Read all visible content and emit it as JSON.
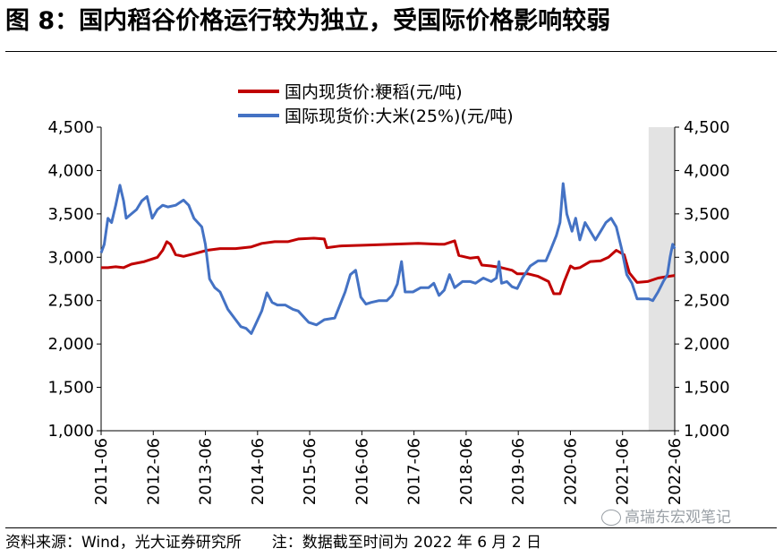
{
  "header": {
    "title": "图 8：国内稻谷价格运行较为独立，受国际价格影响较弱"
  },
  "footer": {
    "source": "资料来源：Wind，光大证券研究所",
    "note": "注：数据截至时间为 2022 年 6 月 2 日"
  },
  "watermark": {
    "text": "高瑞东宏观笔记"
  },
  "chart_data": {
    "type": "line",
    "title": "",
    "xlabel": "",
    "ylabel": "",
    "ylim": [
      1000,
      4500
    ],
    "yticks": [
      "1,000",
      "1,500",
      "2,000",
      "2,500",
      "3,000",
      "3,500",
      "4,000",
      "4,500"
    ],
    "y2ticks": [
      "1,000",
      "1,500",
      "2,000",
      "2,500",
      "3,000",
      "3,500",
      "4,000",
      "4,500"
    ],
    "xticks": [
      "2011-06",
      "2012-06",
      "2013-06",
      "2014-06",
      "2015-06",
      "2016-06",
      "2017-06",
      "2018-06",
      "2019-06",
      "2020-06",
      "2021-06",
      "2022-06"
    ],
    "x_range": [
      2011.42,
      2022.42
    ],
    "shaded_region": [
      2021.92,
      2022.42
    ],
    "legend_position": "top-center",
    "series": [
      {
        "name": "国内现货价:粳稻(元/吨)",
        "color": "#c00000",
        "points": [
          [
            2011.42,
            2880
          ],
          [
            2011.55,
            2880
          ],
          [
            2011.7,
            2890
          ],
          [
            2011.85,
            2880
          ],
          [
            2012.0,
            2920
          ],
          [
            2012.25,
            2950
          ],
          [
            2012.5,
            3000
          ],
          [
            2012.6,
            3080
          ],
          [
            2012.68,
            3180
          ],
          [
            2012.75,
            3150
          ],
          [
            2012.85,
            3030
          ],
          [
            2013.0,
            3010
          ],
          [
            2013.2,
            3040
          ],
          [
            2013.45,
            3080
          ],
          [
            2013.7,
            3100
          ],
          [
            2014.0,
            3100
          ],
          [
            2014.3,
            3120
          ],
          [
            2014.5,
            3160
          ],
          [
            2014.75,
            3180
          ],
          [
            2015.0,
            3180
          ],
          [
            2015.2,
            3210
          ],
          [
            2015.5,
            3220
          ],
          [
            2015.7,
            3210
          ],
          [
            2015.75,
            3110
          ],
          [
            2016.0,
            3130
          ],
          [
            2016.5,
            3140
          ],
          [
            2017.0,
            3150
          ],
          [
            2017.5,
            3160
          ],
          [
            2017.9,
            3150
          ],
          [
            2018.0,
            3150
          ],
          [
            2018.2,
            3190
          ],
          [
            2018.28,
            3020
          ],
          [
            2018.5,
            2990
          ],
          [
            2018.65,
            3000
          ],
          [
            2018.72,
            2910
          ],
          [
            2018.9,
            2900
          ],
          [
            2019.1,
            2880
          ],
          [
            2019.3,
            2850
          ],
          [
            2019.4,
            2810
          ],
          [
            2019.6,
            2810
          ],
          [
            2019.8,
            2780
          ],
          [
            2020.0,
            2720
          ],
          [
            2020.1,
            2580
          ],
          [
            2020.22,
            2580
          ],
          [
            2020.3,
            2720
          ],
          [
            2020.42,
            2900
          ],
          [
            2020.5,
            2870
          ],
          [
            2020.6,
            2880
          ],
          [
            2020.8,
            2950
          ],
          [
            2021.0,
            2960
          ],
          [
            2021.15,
            3000
          ],
          [
            2021.3,
            3080
          ],
          [
            2021.45,
            3030
          ],
          [
            2021.55,
            2820
          ],
          [
            2021.7,
            2710
          ],
          [
            2021.9,
            2720
          ],
          [
            2022.1,
            2760
          ],
          [
            2022.3,
            2780
          ],
          [
            2022.42,
            2790
          ]
        ]
      },
      {
        "name": "国际现货价:大米(25%)(元/吨)",
        "color": "#4472c4",
        "points": [
          [
            2011.42,
            3050
          ],
          [
            2011.48,
            3150
          ],
          [
            2011.55,
            3450
          ],
          [
            2011.62,
            3400
          ],
          [
            2011.7,
            3600
          ],
          [
            2011.78,
            3830
          ],
          [
            2011.85,
            3650
          ],
          [
            2011.9,
            3450
          ],
          [
            2012.0,
            3500
          ],
          [
            2012.1,
            3550
          ],
          [
            2012.2,
            3650
          ],
          [
            2012.3,
            3700
          ],
          [
            2012.4,
            3450
          ],
          [
            2012.5,
            3550
          ],
          [
            2012.6,
            3600
          ],
          [
            2012.7,
            3580
          ],
          [
            2012.85,
            3600
          ],
          [
            2013.0,
            3660
          ],
          [
            2013.1,
            3600
          ],
          [
            2013.2,
            3450
          ],
          [
            2013.35,
            3350
          ],
          [
            2013.42,
            3150
          ],
          [
            2013.5,
            2750
          ],
          [
            2013.6,
            2650
          ],
          [
            2013.7,
            2600
          ],
          [
            2013.85,
            2400
          ],
          [
            2014.0,
            2280
          ],
          [
            2014.1,
            2200
          ],
          [
            2014.2,
            2180
          ],
          [
            2014.3,
            2120
          ],
          [
            2014.4,
            2250
          ],
          [
            2014.5,
            2380
          ],
          [
            2014.6,
            2590
          ],
          [
            2014.7,
            2480
          ],
          [
            2014.8,
            2450
          ],
          [
            2014.95,
            2450
          ],
          [
            2015.1,
            2400
          ],
          [
            2015.2,
            2380
          ],
          [
            2015.4,
            2250
          ],
          [
            2015.55,
            2220
          ],
          [
            2015.7,
            2280
          ],
          [
            2015.9,
            2300
          ],
          [
            2016.0,
            2450
          ],
          [
            2016.1,
            2600
          ],
          [
            2016.2,
            2800
          ],
          [
            2016.3,
            2850
          ],
          [
            2016.4,
            2540
          ],
          [
            2016.5,
            2460
          ],
          [
            2016.6,
            2480
          ],
          [
            2016.75,
            2500
          ],
          [
            2016.9,
            2500
          ],
          [
            2017.0,
            2560
          ],
          [
            2017.1,
            2690
          ],
          [
            2017.18,
            2950
          ],
          [
            2017.25,
            2600
          ],
          [
            2017.4,
            2600
          ],
          [
            2017.55,
            2650
          ],
          [
            2017.7,
            2650
          ],
          [
            2017.8,
            2700
          ],
          [
            2017.9,
            2560
          ],
          [
            2018.0,
            2620
          ],
          [
            2018.1,
            2800
          ],
          [
            2018.2,
            2650
          ],
          [
            2018.35,
            2720
          ],
          [
            2018.5,
            2720
          ],
          [
            2018.6,
            2700
          ],
          [
            2018.75,
            2760
          ],
          [
            2018.9,
            2720
          ],
          [
            2019.0,
            2760
          ],
          [
            2019.05,
            2950
          ],
          [
            2019.1,
            2700
          ],
          [
            2019.2,
            2720
          ],
          [
            2019.3,
            2660
          ],
          [
            2019.4,
            2640
          ],
          [
            2019.5,
            2760
          ],
          [
            2019.65,
            2900
          ],
          [
            2019.8,
            2960
          ],
          [
            2019.95,
            2960
          ],
          [
            2020.05,
            3100
          ],
          [
            2020.15,
            3250
          ],
          [
            2020.22,
            3400
          ],
          [
            2020.28,
            3850
          ],
          [
            2020.35,
            3500
          ],
          [
            2020.45,
            3300
          ],
          [
            2020.52,
            3450
          ],
          [
            2020.6,
            3200
          ],
          [
            2020.7,
            3400
          ],
          [
            2020.8,
            3300
          ],
          [
            2020.9,
            3200
          ],
          [
            2021.0,
            3300
          ],
          [
            2021.1,
            3400
          ],
          [
            2021.2,
            3450
          ],
          [
            2021.3,
            3350
          ],
          [
            2021.4,
            3100
          ],
          [
            2021.5,
            2800
          ],
          [
            2021.6,
            2700
          ],
          [
            2021.7,
            2520
          ],
          [
            2021.8,
            2520
          ],
          [
            2021.92,
            2520
          ],
          [
            2022.0,
            2500
          ],
          [
            2022.1,
            2600
          ],
          [
            2022.2,
            2720
          ],
          [
            2022.28,
            2800
          ],
          [
            2022.33,
            3000
          ],
          [
            2022.38,
            3150
          ],
          [
            2022.42,
            3100
          ]
        ]
      }
    ]
  }
}
